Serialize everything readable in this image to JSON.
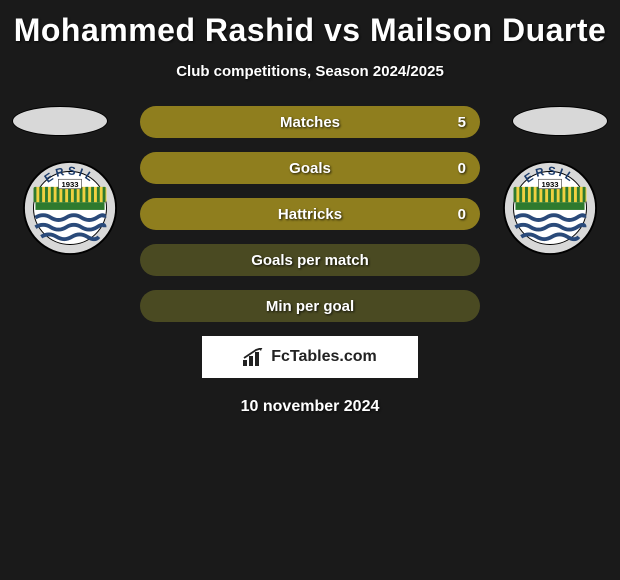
{
  "header": {
    "title": "Mohammed Rashid vs Mailson Duarte",
    "subtitle": "Club competitions, Season 2024/2025"
  },
  "colors": {
    "bar_full": "#8f7e1e",
    "bar_empty": "#4a4a22",
    "background": "#1a1a1a",
    "attribution_bg": "#ffffff"
  },
  "bars": [
    {
      "label": "Matches",
      "value": "5",
      "type": "full"
    },
    {
      "label": "Goals",
      "value": "0",
      "type": "full"
    },
    {
      "label": "Hattricks",
      "value": "0",
      "type": "full"
    },
    {
      "label": "Goals per match",
      "value": "",
      "type": "empty"
    },
    {
      "label": "Min per goal",
      "value": "",
      "type": "empty"
    }
  ],
  "crest": {
    "top_text": "ERSIL",
    "year": "1933",
    "outer_ring": "#d8d8d8",
    "band_color": "#f0d040",
    "band_color2": "#2e7a2e",
    "wave_color": "#2a4a7a",
    "wave_bg": "#ffffff"
  },
  "attribution": {
    "text": "FcTables.com"
  },
  "date": "10 november 2024"
}
